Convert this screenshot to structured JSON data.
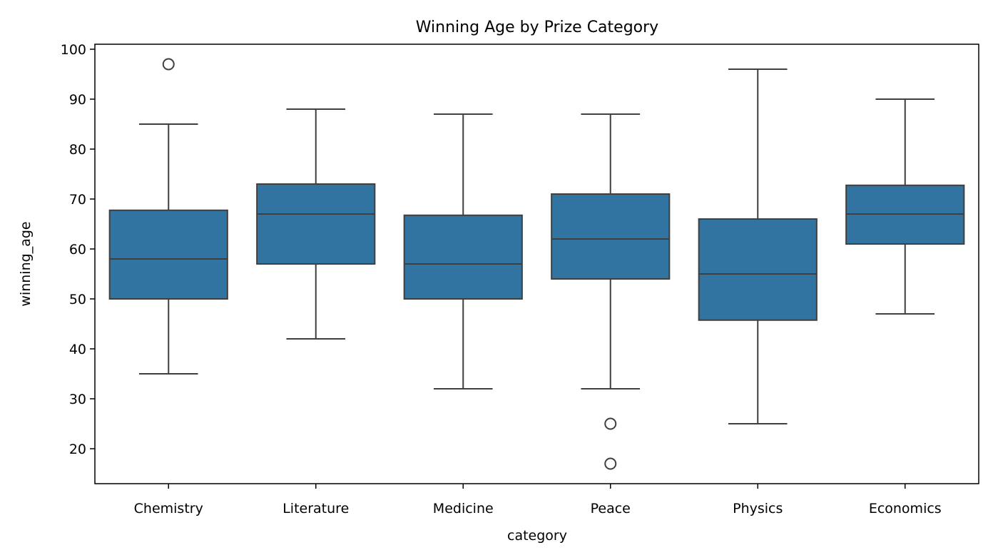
{
  "chart_data": {
    "type": "boxplot",
    "title": "Winning Age by Prize Category",
    "xlabel": "category",
    "ylabel": "winning_age",
    "ylim": [
      13,
      101
    ],
    "yticks": [
      20,
      30,
      40,
      50,
      60,
      70,
      80,
      90,
      100
    ],
    "grid": false,
    "box_color": "#3274a1",
    "line_color": "#3f3f3f",
    "categories": [
      "Chemistry",
      "Literature",
      "Medicine",
      "Peace",
      "Physics",
      "Economics"
    ],
    "boxes": [
      {
        "category": "Chemistry",
        "whisker_low": 35,
        "q1": 50,
        "median": 58,
        "q3": 67.75,
        "whisker_high": 85,
        "outliers": [
          97
        ]
      },
      {
        "category": "Literature",
        "whisker_low": 42,
        "q1": 57,
        "median": 67,
        "q3": 73,
        "whisker_high": 88,
        "outliers": []
      },
      {
        "category": "Medicine",
        "whisker_low": 32,
        "q1": 50,
        "median": 57,
        "q3": 66.75,
        "whisker_high": 87,
        "outliers": []
      },
      {
        "category": "Peace",
        "whisker_low": 32,
        "q1": 54,
        "median": 62,
        "q3": 71,
        "whisker_high": 87,
        "outliers": [
          25,
          17
        ]
      },
      {
        "category": "Physics",
        "whisker_low": 25,
        "q1": 45.75,
        "median": 55,
        "q3": 66,
        "whisker_high": 96,
        "outliers": []
      },
      {
        "category": "Economics",
        "whisker_low": 47,
        "q1": 61,
        "median": 67,
        "q3": 72.75,
        "whisker_high": 90,
        "outliers": []
      }
    ]
  }
}
